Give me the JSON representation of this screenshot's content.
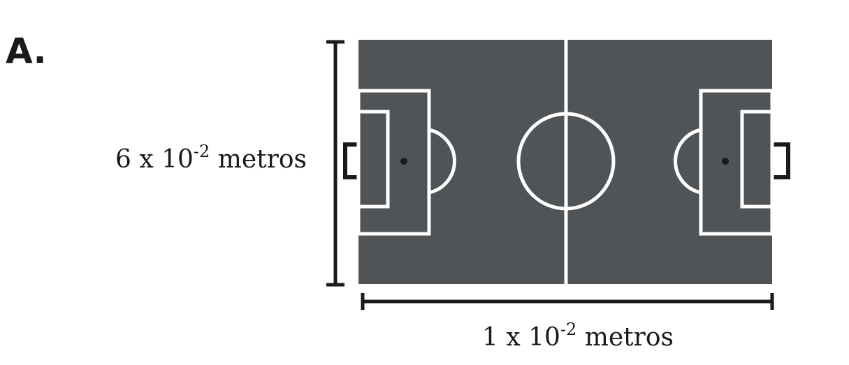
{
  "option_letter": "A.",
  "height_label": {
    "coefficient": "6 x 10",
    "exponent": "-2",
    "unit": " metros"
  },
  "width_label": {
    "coefficient": "1 x 10",
    "exponent": "-2",
    "unit": " metros"
  },
  "colors": {
    "field": "#505457",
    "lines": "#ffffff",
    "ink": "#1a1a1a"
  }
}
